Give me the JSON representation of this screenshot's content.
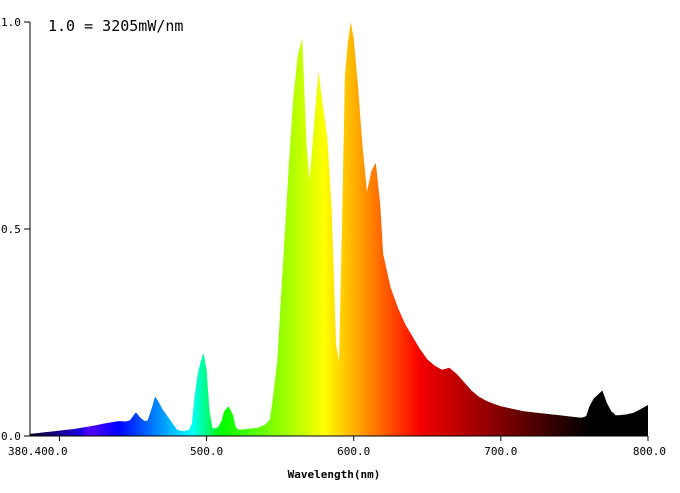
{
  "chart_data": {
    "type": "area",
    "title": "",
    "annotation": "1.0 = 3205mW/nm",
    "xlabel": "Wavelength(nm)",
    "ylabel": "",
    "xlim": [
      380,
      800
    ],
    "ylim": [
      0,
      1.0
    ],
    "x_ticks": [
      {
        "value": 400,
        "label": "380.400.0"
      },
      {
        "value": 500,
        "label": "500.0"
      },
      {
        "value": 600,
        "label": "600.0"
      },
      {
        "value": 700,
        "label": "700.0"
      },
      {
        "value": 800,
        "label": "800.0"
      }
    ],
    "y_ticks": [
      {
        "value": 0.0,
        "label": "0.0"
      },
      {
        "value": 0.5,
        "label": "0.5"
      },
      {
        "value": 1.0,
        "label": "1.0"
      }
    ],
    "grid": false,
    "series": [
      {
        "x": [
          380,
          385,
          390,
          395,
          400,
          405,
          410,
          415,
          420,
          425,
          430,
          435,
          440,
          445,
          448,
          450,
          452,
          455,
          458,
          460,
          463,
          465,
          467,
          470,
          473,
          475,
          478,
          480,
          483,
          485,
          488,
          490,
          492,
          494,
          496,
          498,
          500,
          502,
          504,
          506,
          508,
          510,
          512,
          515,
          518,
          520,
          522,
          525,
          530,
          535,
          540,
          543,
          545,
          548,
          550,
          553,
          556,
          559,
          562,
          565,
          568,
          570,
          573,
          576,
          579,
          582,
          585,
          588,
          590,
          592,
          594,
          596,
          598,
          600,
          603,
          606,
          609,
          612,
          615,
          618,
          620,
          625,
          630,
          635,
          640,
          645,
          650,
          655,
          660,
          665,
          670,
          675,
          680,
          685,
          690,
          695,
          700,
          705,
          710,
          715,
          720,
          725,
          730,
          735,
          740,
          745,
          750,
          755,
          758,
          760,
          763,
          766,
          769,
          772,
          775,
          778,
          780,
          785,
          790,
          795,
          800
        ],
        "values": [
          0.005,
          0.007,
          0.009,
          0.011,
          0.013,
          0.015,
          0.017,
          0.02,
          0.023,
          0.026,
          0.03,
          0.033,
          0.036,
          0.035,
          0.038,
          0.048,
          0.057,
          0.044,
          0.036,
          0.038,
          0.07,
          0.095,
          0.085,
          0.065,
          0.05,
          0.04,
          0.025,
          0.015,
          0.012,
          0.012,
          0.015,
          0.03,
          0.1,
          0.15,
          0.18,
          0.2,
          0.16,
          0.06,
          0.02,
          0.018,
          0.022,
          0.035,
          0.06,
          0.072,
          0.05,
          0.02,
          0.015,
          0.016,
          0.018,
          0.02,
          0.028,
          0.04,
          0.09,
          0.18,
          0.3,
          0.48,
          0.66,
          0.82,
          0.92,
          0.96,
          0.7,
          0.62,
          0.75,
          0.88,
          0.8,
          0.72,
          0.55,
          0.22,
          0.18,
          0.5,
          0.87,
          0.95,
          1.0,
          0.96,
          0.84,
          0.7,
          0.59,
          0.64,
          0.66,
          0.56,
          0.44,
          0.36,
          0.31,
          0.27,
          0.24,
          0.21,
          0.185,
          0.17,
          0.16,
          0.165,
          0.15,
          0.13,
          0.11,
          0.095,
          0.085,
          0.078,
          0.072,
          0.068,
          0.064,
          0.06,
          0.058,
          0.056,
          0.054,
          0.052,
          0.05,
          0.048,
          0.046,
          0.044,
          0.048,
          0.07,
          0.09,
          0.1,
          0.11,
          0.08,
          0.06,
          0.05,
          0.05,
          0.052,
          0.056,
          0.065,
          0.075
        ]
      }
    ]
  }
}
